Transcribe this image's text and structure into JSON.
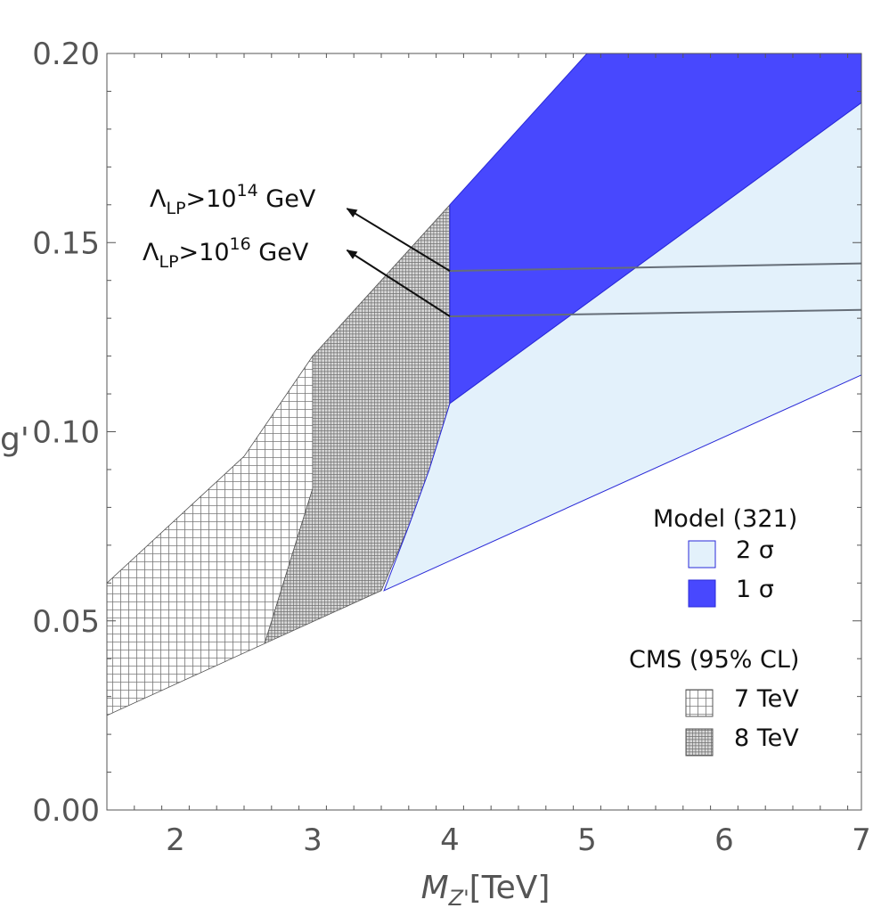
{
  "chart_data": {
    "type": "area",
    "xlabel": {
      "symbol": "M",
      "sub": "Z'",
      "unit": "[TeV]"
    },
    "ylabel": "g'",
    "xlim": [
      1.5,
      7
    ],
    "ylim": [
      0,
      0.2
    ],
    "xticks": [
      2,
      3,
      4,
      5,
      6,
      7
    ],
    "yticks": [
      0.0,
      0.05,
      0.1,
      0.15,
      0.2
    ],
    "ytick_labels": [
      "0.00",
      "0.05",
      "0.10",
      "0.15",
      "0.20"
    ],
    "regions": [
      {
        "key": "cms7",
        "name": "7 TeV",
        "group": "CMS (95% CL)",
        "fill": "hatch-light",
        "points": [
          [
            1.5,
            0.06
          ],
          [
            2.5,
            0.0935
          ],
          [
            3.0,
            0.12
          ],
          [
            3.0,
            0.085
          ],
          [
            2.65,
            0.044
          ],
          [
            1.5,
            0.025
          ]
        ]
      },
      {
        "key": "cms8",
        "name": "8 TeV",
        "group": "CMS (95% CL)",
        "fill": "hatch-dense",
        "points": [
          [
            3.0,
            0.12
          ],
          [
            4.0,
            0.16
          ],
          [
            4.0,
            0.1075
          ],
          [
            3.85,
            0.09
          ],
          [
            3.7,
            0.075
          ],
          [
            3.5,
            0.058
          ],
          [
            2.65,
            0.044
          ],
          [
            3.0,
            0.085
          ]
        ]
      },
      {
        "key": "sigma2",
        "name": "2 σ",
        "group": "Model (321)",
        "color": "#e3f1fb",
        "points": [
          [
            3.52,
            0.058
          ],
          [
            3.7,
            0.075
          ],
          [
            3.85,
            0.09
          ],
          [
            4.0,
            0.1075
          ],
          [
            7.0,
            0.187
          ],
          [
            7.0,
            0.115
          ]
        ]
      },
      {
        "key": "sigma1",
        "name": "1 σ",
        "group": "Model (321)",
        "color": "#4848fe",
        "points": [
          [
            4.0,
            0.16
          ],
          [
            5.0,
            0.2
          ],
          [
            7.0,
            0.2
          ],
          [
            7.0,
            0.187
          ],
          [
            4.0,
            0.1075
          ]
        ]
      }
    ],
    "lines": [
      {
        "key": "lp14",
        "points": [
          [
            4.0,
            0.1425
          ],
          [
            7.0,
            0.1445
          ]
        ]
      },
      {
        "key": "lp16",
        "points": [
          [
            4.0,
            0.1305
          ],
          [
            7.0,
            0.1322
          ]
        ]
      }
    ],
    "annotations": [
      {
        "key": "lp14",
        "symbol": "Λ",
        "sub": "LP",
        "text": ">10",
        "sup": "14",
        "unit": " GeV",
        "arrow_from": [
          4.0,
          0.1425
        ],
        "arrow_to": [
          3.25,
          0.159
        ]
      },
      {
        "key": "lp16",
        "symbol": "Λ",
        "sub": "LP",
        "text": ">10",
        "sup": "16",
        "unit": " GeV",
        "arrow_from": [
          4.0,
          0.1305
        ],
        "arrow_to": [
          3.25,
          0.148
        ]
      }
    ],
    "legend": {
      "position": "right",
      "groups": [
        {
          "title": "Model (321)",
          "items": [
            {
              "label": "2 σ",
              "key": "sigma2"
            },
            {
              "label": "1 σ",
              "key": "sigma1"
            }
          ]
        },
        {
          "title": "CMS (95% CL)",
          "items": [
            {
              "label": "7 TeV",
              "key": "cms7"
            },
            {
              "label": "8 TeV",
              "key": "cms8"
            }
          ]
        }
      ]
    },
    "colors": {
      "sigma1": "#4848fe",
      "sigma2": "#e3f1fb",
      "edge": "#2a2ad8",
      "hatch": "#555555",
      "axis": "#555555",
      "line": "#666e78"
    }
  }
}
